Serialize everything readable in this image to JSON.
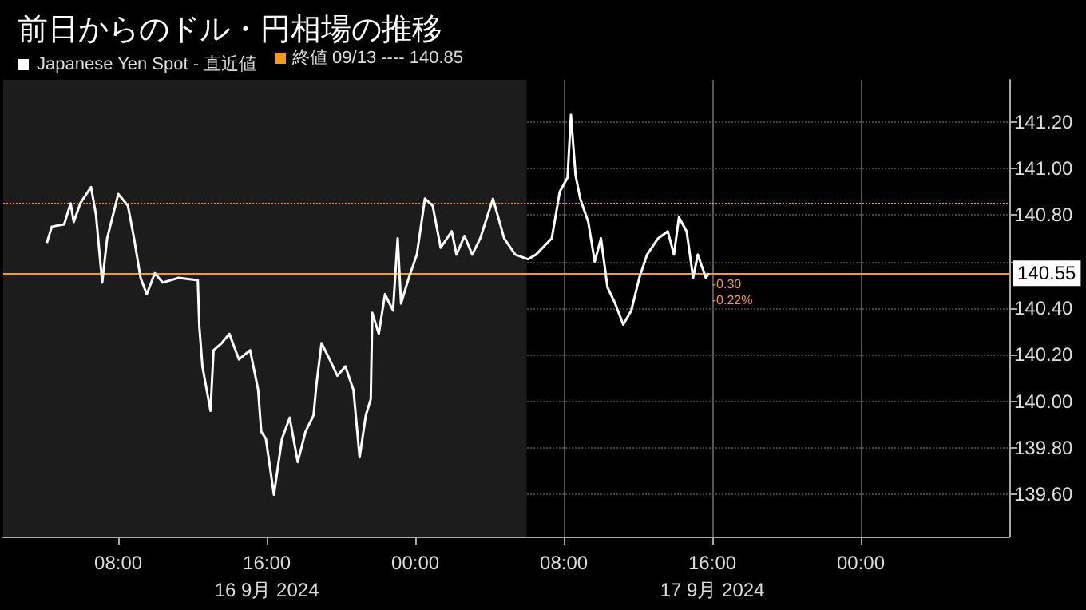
{
  "chart_data": {
    "type": "line",
    "title": "前日からのドル・円相場の推移",
    "x": [
      "2024-09-16T04:09",
      "2024-09-16T04:25",
      "2024-09-16T05:05",
      "2024-09-16T05:26",
      "2024-09-16T05:36",
      "2024-09-16T05:57",
      "2024-09-16T06:32",
      "2024-09-16T06:48",
      "2024-09-16T07:08",
      "2024-09-16T07:24",
      "2024-09-16T08:00",
      "2024-09-16T08:31",
      "2024-09-16T08:51",
      "2024-09-16T09:12",
      "2024-09-16T09:32",
      "2024-09-16T09:58",
      "2024-09-16T10:24",
      "2024-09-16T11:15",
      "2024-09-16T12:17",
      "2024-09-16T12:22",
      "2024-09-16T12:32",
      "2024-09-16T12:58",
      "2024-09-16T13:08",
      "2024-09-16T13:34",
      "2024-09-16T13:59",
      "2024-09-16T14:30",
      "2024-09-16T15:06",
      "2024-09-16T15:32",
      "2024-09-16T15:42",
      "2024-09-16T15:57",
      "2024-09-16T16:23",
      "2024-09-16T16:49",
      "2024-09-16T17:14",
      "2024-09-16T17:40",
      "2024-09-16T18:05",
      "2024-09-16T18:31",
      "2024-09-16T18:41",
      "2024-09-16T18:57",
      "2024-09-16T19:23",
      "2024-09-16T19:48",
      "2024-09-16T20:14",
      "2024-09-16T20:40",
      "2024-09-16T21:00",
      "2024-09-16T21:20",
      "2024-09-16T21:36",
      "2024-09-16T21:41",
      "2024-09-16T22:02",
      "2024-09-16T22:22",
      "2024-09-16T22:48",
      "2024-09-16T23:03",
      "2024-09-16T23:14",
      "2024-09-16T23:39",
      "2024-09-17T00:05",
      "2024-09-17T00:31",
      "2024-09-17T00:56",
      "2024-09-17T01:22",
      "2024-09-17T01:58",
      "2024-09-17T02:13",
      "2024-09-17T02:39",
      "2024-09-17T03:04",
      "2024-09-17T03:30",
      "2024-09-17T04:11",
      "2024-09-17T04:47",
      "2024-09-17T05:23",
      "2024-09-17T06:04",
      "2024-09-17T06:30",
      "2024-09-17T07:21",
      "2024-09-17T07:47",
      "2024-09-17T08:12",
      "2024-09-17T08:23",
      "2024-09-17T08:38",
      "2024-09-17T08:53",
      "2024-09-17T09:19",
      "2024-09-17T09:40",
      "2024-09-17T10:00",
      "2024-09-17T10:21",
      "2024-09-17T10:46",
      "2024-09-17T11:12",
      "2024-09-17T11:38",
      "2024-09-17T12:04",
      "2024-09-17T12:29",
      "2024-09-17T13:05",
      "2024-09-17T13:36",
      "2024-09-17T13:56",
      "2024-09-17T14:12",
      "2024-09-17T14:37",
      "2024-09-17T14:58",
      "2024-09-17T15:13",
      "2024-09-17T15:39",
      "2024-09-17T15:49"
    ],
    "series": [
      {
        "name": "Japanese Yen Spot - 直近値",
        "color": "#ffffff",
        "values": [
          140.68,
          140.75,
          140.76,
          140.85,
          140.77,
          140.85,
          140.92,
          140.8,
          140.51,
          140.7,
          140.89,
          140.84,
          140.7,
          140.53,
          140.46,
          140.55,
          140.51,
          140.53,
          140.52,
          140.32,
          140.15,
          139.96,
          140.22,
          140.25,
          140.29,
          140.18,
          140.22,
          140.05,
          139.87,
          139.84,
          139.6,
          139.84,
          139.93,
          139.74,
          139.87,
          139.94,
          140.08,
          140.25,
          140.18,
          140.11,
          140.15,
          140.05,
          139.76,
          139.94,
          140.01,
          140.38,
          140.29,
          140.46,
          140.39,
          140.7,
          140.42,
          140.53,
          140.63,
          140.87,
          140.84,
          140.66,
          140.73,
          140.63,
          140.71,
          140.63,
          140.7,
          140.87,
          140.7,
          140.63,
          140.61,
          140.63,
          140.7,
          140.9,
          140.96,
          141.23,
          140.97,
          140.87,
          140.77,
          140.6,
          140.7,
          140.49,
          140.42,
          140.33,
          140.39,
          140.53,
          140.63,
          140.7,
          140.73,
          140.63,
          140.79,
          140.73,
          140.53,
          140.63,
          140.53,
          140.55
        ]
      }
    ],
    "xlim": [
      "2024-09-16T01:48",
      "2024-09-18T08:00"
    ],
    "xticks": [
      {
        "value": "2024-09-16T08:00",
        "label": "08:00"
      },
      {
        "value": "2024-09-16T16:00",
        "label": "16:00\n16 9月 2024"
      },
      {
        "value": "2024-09-17T00:00",
        "label": "00:00"
      },
      {
        "value": "2024-09-17T08:00",
        "label": "08:00"
      },
      {
        "value": "2024-09-17T16:00",
        "label": "16:00\n17 9月 2024"
      },
      {
        "value": "2024-09-18T00:00",
        "label": "00:00"
      }
    ],
    "ylim": [
      139.42,
      141.38
    ],
    "yticks": [
      {
        "value": 139.6,
        "label": "139.60"
      },
      {
        "value": 139.8,
        "label": "139.80"
      },
      {
        "value": 140.0,
        "label": "140.00"
      },
      {
        "value": 140.2,
        "label": "140.20"
      },
      {
        "value": 140.4,
        "label": "140.40"
      },
      {
        "value": 140.6,
        "label": null
      },
      {
        "value": 140.8,
        "label": "140.80"
      },
      {
        "value": 141.0,
        "label": "141.00"
      },
      {
        "value": 141.2,
        "label": "141.20"
      }
    ],
    "ref_lines": [
      {
        "axis": "y",
        "value": 140.85,
        "label": "終値 09/13 ---- 140.85",
        "color": "#f59b1e",
        "line_style": "dotted"
      },
      {
        "axis": "y",
        "value": 140.55,
        "label": "140.55",
        "color": "#f59b1e",
        "line_style": "solid"
      }
    ],
    "bands": [
      {
        "axis": "x",
        "from": "2024-09-16T01:48",
        "to": "2024-09-17T06:00",
        "color": "#1c1c1c"
      }
    ],
    "annotations": [
      {
        "text": "-0.30",
        "x": "2024-09-17T15:49",
        "y": 140.55
      },
      {
        "text": "-0.22%",
        "x": "2024-09-17T15:49",
        "y": 140.55
      }
    ],
    "grid": true,
    "legend": "top left",
    "marker": "none",
    "line_style": "solid"
  }
}
